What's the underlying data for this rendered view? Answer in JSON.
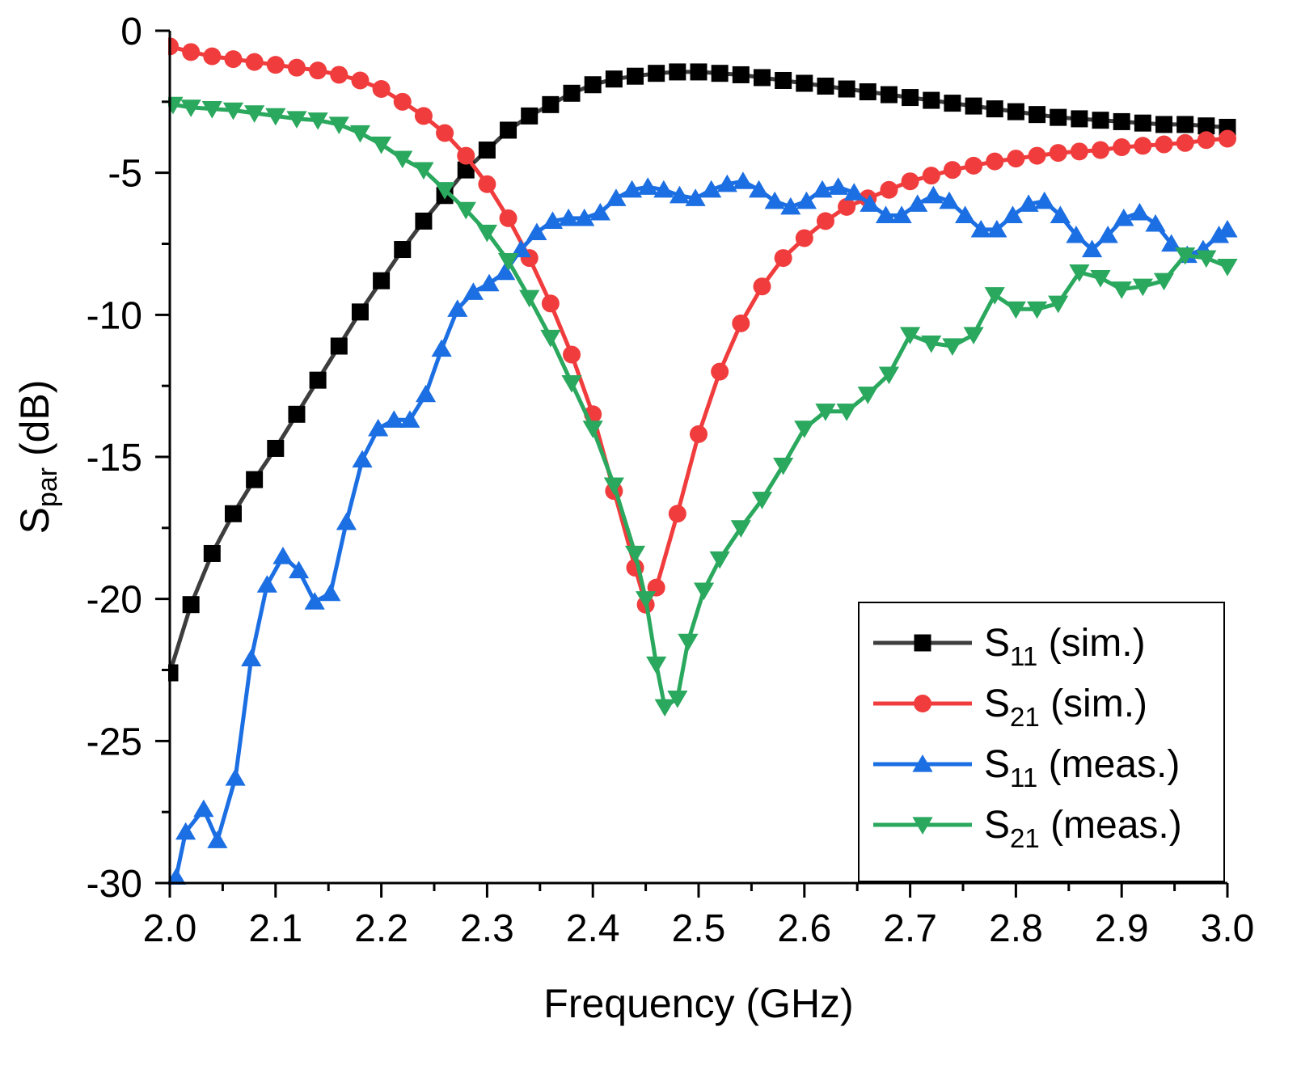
{
  "chart_data": {
    "type": "line",
    "xlabel": "Frequency (GHz)",
    "ylabel": {
      "main": "S",
      "sub": "par",
      "rest": " (dB)"
    },
    "xlim": [
      2.0,
      3.0
    ],
    "ylim": [
      -30,
      0
    ],
    "x_ticks": [
      "2.0",
      "2.1",
      "2.2",
      "2.3",
      "2.4",
      "2.5",
      "2.6",
      "2.7",
      "2.8",
      "2.9",
      "3.0"
    ],
    "y_ticks": [
      "0",
      "-5",
      "-10",
      "-15",
      "-20",
      "-25",
      "-30"
    ],
    "legend_position": "bottom-right",
    "series": [
      {
        "name": "S11 (sim.)",
        "label_main": "S",
        "label_sub": "11",
        "label_rest": " (sim.)",
        "color": "#000000",
        "line_color": "#3d3d3d",
        "marker": "square",
        "points": [
          [
            2.0,
            -22.6
          ],
          [
            2.02,
            -20.2
          ],
          [
            2.04,
            -18.4
          ],
          [
            2.06,
            -17.0
          ],
          [
            2.08,
            -15.8
          ],
          [
            2.1,
            -14.7
          ],
          [
            2.12,
            -13.5
          ],
          [
            2.14,
            -12.3
          ],
          [
            2.16,
            -11.1
          ],
          [
            2.18,
            -9.9
          ],
          [
            2.2,
            -8.8
          ],
          [
            2.22,
            -7.7
          ],
          [
            2.24,
            -6.7
          ],
          [
            2.26,
            -5.8
          ],
          [
            2.28,
            -4.9
          ],
          [
            2.3,
            -4.2
          ],
          [
            2.32,
            -3.5
          ],
          [
            2.34,
            -3.0
          ],
          [
            2.36,
            -2.6
          ],
          [
            2.38,
            -2.2
          ],
          [
            2.4,
            -1.9
          ],
          [
            2.42,
            -1.7
          ],
          [
            2.44,
            -1.6
          ],
          [
            2.46,
            -1.5
          ],
          [
            2.48,
            -1.45
          ],
          [
            2.5,
            -1.45
          ],
          [
            2.52,
            -1.5
          ],
          [
            2.54,
            -1.55
          ],
          [
            2.56,
            -1.65
          ],
          [
            2.58,
            -1.75
          ],
          [
            2.6,
            -1.85
          ],
          [
            2.62,
            -1.95
          ],
          [
            2.64,
            -2.05
          ],
          [
            2.66,
            -2.15
          ],
          [
            2.68,
            -2.25
          ],
          [
            2.7,
            -2.35
          ],
          [
            2.72,
            -2.45
          ],
          [
            2.74,
            -2.55
          ],
          [
            2.76,
            -2.65
          ],
          [
            2.78,
            -2.75
          ],
          [
            2.8,
            -2.85
          ],
          [
            2.82,
            -2.95
          ],
          [
            2.84,
            -3.05
          ],
          [
            2.86,
            -3.1
          ],
          [
            2.88,
            -3.15
          ],
          [
            2.9,
            -3.2
          ],
          [
            2.92,
            -3.25
          ],
          [
            2.94,
            -3.3
          ],
          [
            2.96,
            -3.3
          ],
          [
            2.98,
            -3.35
          ],
          [
            3.0,
            -3.4
          ]
        ]
      },
      {
        "name": "S21 (sim.)",
        "label_main": "S",
        "label_sub": "21",
        "label_rest": " (sim.)",
        "color": "#f03c3c",
        "line_color": "#f03c3c",
        "marker": "circle",
        "points": [
          [
            2.0,
            -0.55
          ],
          [
            2.02,
            -0.75
          ],
          [
            2.04,
            -0.9
          ],
          [
            2.06,
            -1.0
          ],
          [
            2.08,
            -1.1
          ],
          [
            2.1,
            -1.2
          ],
          [
            2.12,
            -1.3
          ],
          [
            2.14,
            -1.4
          ],
          [
            2.16,
            -1.55
          ],
          [
            2.18,
            -1.75
          ],
          [
            2.2,
            -2.05
          ],
          [
            2.22,
            -2.5
          ],
          [
            2.24,
            -3.0
          ],
          [
            2.26,
            -3.6
          ],
          [
            2.28,
            -4.4
          ],
          [
            2.3,
            -5.4
          ],
          [
            2.32,
            -6.6
          ],
          [
            2.34,
            -8.0
          ],
          [
            2.36,
            -9.6
          ],
          [
            2.38,
            -11.4
          ],
          [
            2.4,
            -13.5
          ],
          [
            2.42,
            -16.2
          ],
          [
            2.44,
            -18.9
          ],
          [
            2.45,
            -20.2
          ],
          [
            2.46,
            -19.6
          ],
          [
            2.48,
            -17.0
          ],
          [
            2.5,
            -14.2
          ],
          [
            2.52,
            -12.0
          ],
          [
            2.54,
            -10.3
          ],
          [
            2.56,
            -9.0
          ],
          [
            2.58,
            -8.0
          ],
          [
            2.6,
            -7.3
          ],
          [
            2.62,
            -6.7
          ],
          [
            2.64,
            -6.2
          ],
          [
            2.66,
            -5.9
          ],
          [
            2.68,
            -5.6
          ],
          [
            2.7,
            -5.3
          ],
          [
            2.72,
            -5.1
          ],
          [
            2.74,
            -4.9
          ],
          [
            2.76,
            -4.75
          ],
          [
            2.78,
            -4.6
          ],
          [
            2.8,
            -4.5
          ],
          [
            2.82,
            -4.4
          ],
          [
            2.84,
            -4.3
          ],
          [
            2.86,
            -4.25
          ],
          [
            2.88,
            -4.2
          ],
          [
            2.9,
            -4.1
          ],
          [
            2.92,
            -4.05
          ],
          [
            2.94,
            -4.0
          ],
          [
            2.96,
            -3.95
          ],
          [
            2.98,
            -3.85
          ],
          [
            3.0,
            -3.8
          ]
        ]
      },
      {
        "name": "S11 (meas.)",
        "label_main": "S",
        "label_sub": "11",
        "label_rest": " (meas.)",
        "color": "#1c6fe3",
        "line_color": "#1c6fe3",
        "marker": "triangle-up",
        "points": [
          [
            2.006,
            -29.8
          ],
          [
            2.015,
            -28.2
          ],
          [
            2.032,
            -27.4
          ],
          [
            2.045,
            -28.5
          ],
          [
            2.062,
            -26.3
          ],
          [
            2.077,
            -22.1
          ],
          [
            2.092,
            -19.5
          ],
          [
            2.107,
            -18.5
          ],
          [
            2.122,
            -19.0
          ],
          [
            2.137,
            -20.1
          ],
          [
            2.152,
            -19.8
          ],
          [
            2.167,
            -17.3
          ],
          [
            2.182,
            -15.1
          ],
          [
            2.197,
            -14.0
          ],
          [
            2.212,
            -13.7
          ],
          [
            2.227,
            -13.7
          ],
          [
            2.242,
            -12.8
          ],
          [
            2.257,
            -11.2
          ],
          [
            2.272,
            -9.8
          ],
          [
            2.287,
            -9.2
          ],
          [
            2.302,
            -8.9
          ],
          [
            2.317,
            -8.5
          ],
          [
            2.332,
            -7.7
          ],
          [
            2.347,
            -7.1
          ],
          [
            2.362,
            -6.7
          ],
          [
            2.377,
            -6.6
          ],
          [
            2.392,
            -6.6
          ],
          [
            2.407,
            -6.4
          ],
          [
            2.422,
            -5.9
          ],
          [
            2.437,
            -5.6
          ],
          [
            2.452,
            -5.5
          ],
          [
            2.467,
            -5.6
          ],
          [
            2.482,
            -5.8
          ],
          [
            2.497,
            -5.9
          ],
          [
            2.512,
            -5.6
          ],
          [
            2.527,
            -5.4
          ],
          [
            2.542,
            -5.3
          ],
          [
            2.557,
            -5.6
          ],
          [
            2.572,
            -6.0
          ],
          [
            2.587,
            -6.2
          ],
          [
            2.602,
            -6.0
          ],
          [
            2.617,
            -5.6
          ],
          [
            2.632,
            -5.5
          ],
          [
            2.647,
            -5.7
          ],
          [
            2.662,
            -6.1
          ],
          [
            2.677,
            -6.5
          ],
          [
            2.692,
            -6.5
          ],
          [
            2.707,
            -6.1
          ],
          [
            2.722,
            -5.8
          ],
          [
            2.737,
            -6.0
          ],
          [
            2.752,
            -6.5
          ],
          [
            2.767,
            -7.0
          ],
          [
            2.782,
            -7.0
          ],
          [
            2.797,
            -6.5
          ],
          [
            2.812,
            -6.1
          ],
          [
            2.827,
            -6.0
          ],
          [
            2.842,
            -6.5
          ],
          [
            2.857,
            -7.2
          ],
          [
            2.872,
            -7.7
          ],
          [
            2.887,
            -7.2
          ],
          [
            2.902,
            -6.6
          ],
          [
            2.917,
            -6.4
          ],
          [
            2.932,
            -6.8
          ],
          [
            2.947,
            -7.5
          ],
          [
            2.962,
            -7.9
          ],
          [
            2.977,
            -7.7
          ],
          [
            2.992,
            -7.2
          ],
          [
            3.0,
            -7.0
          ]
        ]
      },
      {
        "name": "S21 (meas.)",
        "label_main": "S",
        "label_sub": "21",
        "label_rest": " (meas.)",
        "color": "#2aa85e",
        "line_color": "#2aa85e",
        "marker": "triangle-down",
        "points": [
          [
            2.003,
            -2.6
          ],
          [
            2.02,
            -2.7
          ],
          [
            2.04,
            -2.75
          ],
          [
            2.06,
            -2.8
          ],
          [
            2.08,
            -2.9
          ],
          [
            2.1,
            -3.0
          ],
          [
            2.12,
            -3.1
          ],
          [
            2.14,
            -3.15
          ],
          [
            2.16,
            -3.3
          ],
          [
            2.18,
            -3.6
          ],
          [
            2.2,
            -4.0
          ],
          [
            2.22,
            -4.5
          ],
          [
            2.24,
            -4.9
          ],
          [
            2.26,
            -5.6
          ],
          [
            2.28,
            -6.3
          ],
          [
            2.3,
            -7.1
          ],
          [
            2.32,
            -8.1
          ],
          [
            2.34,
            -9.4
          ],
          [
            2.36,
            -10.8
          ],
          [
            2.38,
            -12.4
          ],
          [
            2.4,
            -14.0
          ],
          [
            2.42,
            -16.0
          ],
          [
            2.44,
            -18.4
          ],
          [
            2.45,
            -20.0
          ],
          [
            2.46,
            -22.3
          ],
          [
            2.468,
            -23.8
          ],
          [
            2.48,
            -23.5
          ],
          [
            2.49,
            -21.5
          ],
          [
            2.505,
            -19.7
          ],
          [
            2.52,
            -18.6
          ],
          [
            2.54,
            -17.5
          ],
          [
            2.56,
            -16.5
          ],
          [
            2.58,
            -15.3
          ],
          [
            2.6,
            -14.0
          ],
          [
            2.62,
            -13.4
          ],
          [
            2.64,
            -13.4
          ],
          [
            2.66,
            -12.8
          ],
          [
            2.68,
            -12.1
          ],
          [
            2.7,
            -10.7
          ],
          [
            2.72,
            -11.0
          ],
          [
            2.74,
            -11.1
          ],
          [
            2.76,
            -10.7
          ],
          [
            2.78,
            -9.3
          ],
          [
            2.8,
            -9.8
          ],
          [
            2.82,
            -9.8
          ],
          [
            2.84,
            -9.6
          ],
          [
            2.86,
            -8.5
          ],
          [
            2.88,
            -8.7
          ],
          [
            2.9,
            -9.1
          ],
          [
            2.92,
            -9.0
          ],
          [
            2.94,
            -8.8
          ],
          [
            2.96,
            -7.9
          ],
          [
            2.98,
            -8.0
          ],
          [
            3.0,
            -8.3
          ]
        ]
      }
    ]
  }
}
